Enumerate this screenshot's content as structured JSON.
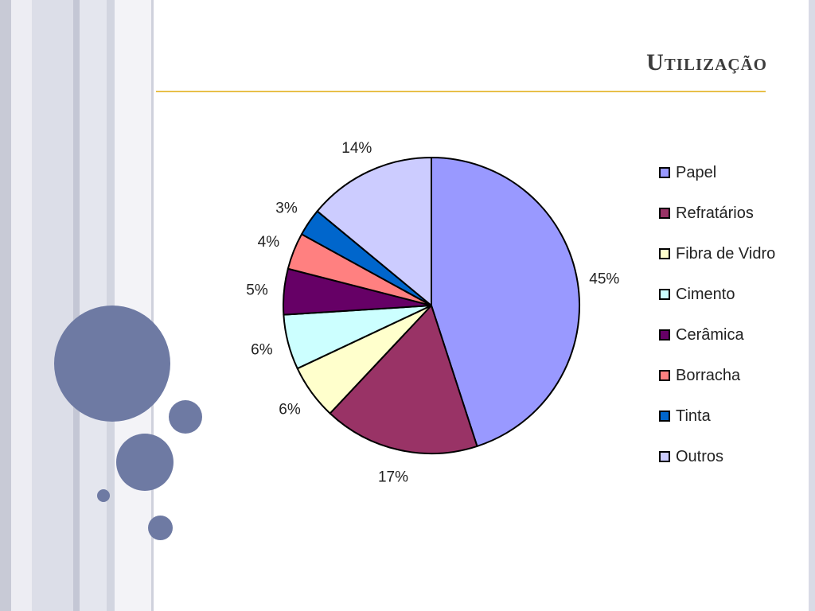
{
  "slide": {
    "title": "Utilização"
  },
  "chart_data": {
    "type": "pie",
    "title": "",
    "categories": [
      "Papel",
      "Refratários",
      "Fibra de Vidro",
      "Cimento",
      "Cerâmica",
      "Borracha",
      "Tinta",
      "Outros"
    ],
    "values": [
      45,
      17,
      6,
      6,
      5,
      4,
      3,
      14
    ],
    "labels": [
      "45%",
      "17%",
      "6%",
      "6%",
      "5%",
      "4%",
      "3%",
      "14%"
    ],
    "colors": [
      "#9999ff",
      "#993366",
      "#ffffcc",
      "#ccffff",
      "#660066",
      "#ff8080",
      "#0066cc",
      "#ccccff"
    ],
    "legend_position": "right"
  }
}
